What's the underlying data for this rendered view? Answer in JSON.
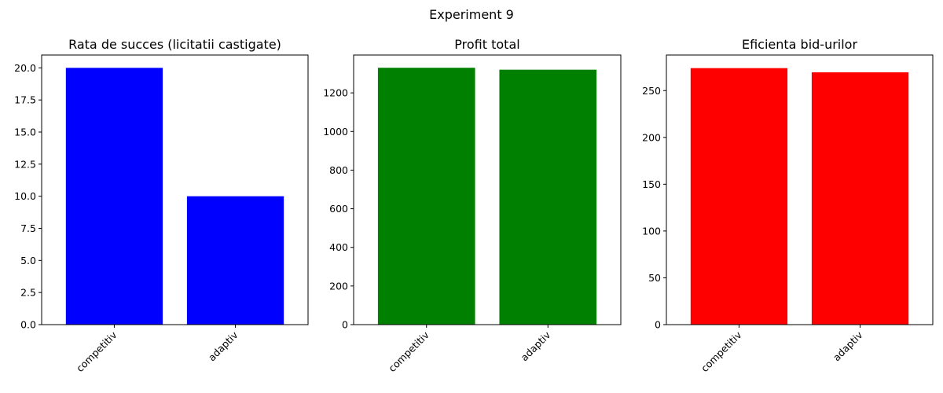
{
  "figure": {
    "suptitle": "Experiment 9"
  },
  "chart_data": [
    {
      "type": "bar",
      "title": "Rata de succes (licitatii castigate)",
      "categories": [
        "competitiv",
        "adaptiv"
      ],
      "values": [
        20,
        10
      ],
      "color": "#0000ff",
      "ylim": [
        0,
        21
      ],
      "yticks": [
        0,
        2.5,
        5,
        7.5,
        10,
        12.5,
        15,
        17.5,
        20
      ],
      "ytick_labels": [
        "0.0",
        "2.5",
        "5.0",
        "7.5",
        "10.0",
        "12.5",
        "15.0",
        "17.5",
        "20.0"
      ],
      "xlabel": "",
      "ylabel": "",
      "grid": false,
      "xtick_rotation": "45 degrees"
    },
    {
      "type": "bar",
      "title": "Profit total",
      "categories": [
        "competitiv",
        "adaptiv"
      ],
      "values": [
        1330,
        1320
      ],
      "color": "#008000",
      "ylim": [
        0,
        1396
      ],
      "yticks": [
        0,
        200,
        400,
        600,
        800,
        1000,
        1200
      ],
      "ytick_labels": [
        "0",
        "200",
        "400",
        "600",
        "800",
        "1000",
        "1200"
      ],
      "xlabel": "",
      "ylabel": "",
      "grid": false,
      "xtick_rotation": "45 degrees"
    },
    {
      "type": "bar",
      "title": "Eficienta bid-urilor",
      "categories": [
        "competitiv",
        "adaptiv"
      ],
      "values": [
        274,
        269.5
      ],
      "color": "#ff0000",
      "ylim": [
        0,
        288
      ],
      "yticks": [
        0,
        50,
        100,
        150,
        200,
        250
      ],
      "ytick_labels": [
        "0",
        "50",
        "100",
        "150",
        "200",
        "250"
      ],
      "xlabel": "",
      "ylabel": "",
      "grid": false,
      "xtick_rotation": "45 degrees"
    }
  ]
}
